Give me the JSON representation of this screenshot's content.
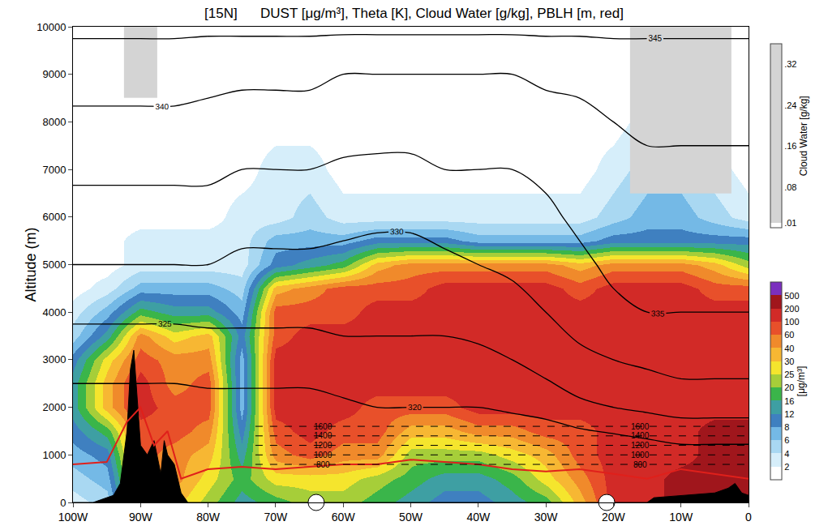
{
  "chart_data": {
    "type": "heatmap",
    "title": "[15N]      DUST [μg/m³], Theta [K], Cloud Water [g/kg], PBLH [m, red]",
    "y_label": "Altitude (m)",
    "xlim": [
      -100,
      0
    ],
    "xticks": [
      {
        "value": -100,
        "label": "100W"
      },
      {
        "value": -90,
        "label": "90W"
      },
      {
        "value": -80,
        "label": "80W"
      },
      {
        "value": -70,
        "label": "70W"
      },
      {
        "value": -60,
        "label": "60W"
      },
      {
        "value": -50,
        "label": "50W"
      },
      {
        "value": -40,
        "label": "40W"
      },
      {
        "value": -30,
        "label": "30W"
      },
      {
        "value": -20,
        "label": "20W"
      },
      {
        "value": -10,
        "label": "10W"
      },
      0
    ],
    "ylim": [
      0,
      10000
    ],
    "yticks": [
      0,
      1000,
      2000,
      3000,
      4000,
      5000,
      6000,
      7000,
      8000,
      9000,
      10000
    ],
    "dust": {
      "x": [
        -100,
        -95,
        -90,
        -85,
        -80,
        -75,
        -70,
        -65,
        -60,
        -55,
        -50,
        -45,
        -40,
        -35,
        -30,
        -25,
        -20,
        -15,
        -10,
        -5,
        0
      ],
      "y": [
        0,
        500,
        1000,
        1500,
        2000,
        2500,
        3000,
        3500,
        4000,
        4500,
        5000,
        5500,
        6000,
        7000,
        8000,
        10000
      ],
      "z": [
        [
          3,
          4,
          30,
          30,
          20,
          12,
          16,
          20,
          20,
          16,
          12,
          10,
          10,
          12,
          16,
          30,
          100,
          150,
          200,
          250,
          300
        ],
        [
          4,
          6,
          40,
          40,
          25,
          16,
          25,
          25,
          25,
          20,
          16,
          12,
          12,
          16,
          25,
          40,
          120,
          150,
          200,
          250,
          300
        ],
        [
          6,
          8,
          60,
          50,
          30,
          12,
          40,
          60,
          50,
          40,
          20,
          20,
          20,
          25,
          30,
          60,
          120,
          150,
          180,
          200,
          250
        ],
        [
          8,
          16,
          80,
          60,
          50,
          8,
          80,
          100,
          80,
          60,
          30,
          30,
          40,
          50,
          60,
          80,
          150,
          150,
          180,
          200,
          220
        ],
        [
          12,
          30,
          100,
          60,
          60,
          6,
          100,
          100,
          100,
          80,
          60,
          80,
          100,
          100,
          100,
          100,
          150,
          150,
          150,
          150,
          150
        ],
        [
          12,
          30,
          100,
          50,
          60,
          6,
          100,
          100,
          100,
          100,
          100,
          120,
          150,
          150,
          150,
          120,
          150,
          150,
          150,
          150,
          150
        ],
        [
          8,
          25,
          80,
          40,
          50,
          6,
          100,
          100,
          100,
          100,
          100,
          150,
          150,
          150,
          150,
          120,
          150,
          150,
          150,
          150,
          150
        ],
        [
          4,
          12,
          40,
          25,
          30,
          8,
          80,
          100,
          100,
          100,
          100,
          150,
          150,
          150,
          150,
          120,
          150,
          150,
          150,
          150,
          120
        ],
        [
          2,
          6,
          16,
          12,
          12,
          6,
          60,
          80,
          80,
          100,
          100,
          120,
          150,
          150,
          150,
          100,
          150,
          150,
          150,
          120,
          100
        ],
        [
          1,
          3,
          6,
          6,
          6,
          4,
          30,
          40,
          60,
          80,
          80,
          100,
          100,
          100,
          100,
          80,
          100,
          100,
          100,
          80,
          60
        ],
        [
          0,
          1,
          3,
          3,
          3,
          3,
          10,
          12,
          16,
          30,
          40,
          40,
          40,
          40,
          40,
          30,
          40,
          40,
          40,
          30,
          20
        ],
        [
          0,
          0,
          2,
          2,
          2,
          2,
          6,
          6,
          6,
          8,
          8,
          8,
          6,
          6,
          6,
          6,
          8,
          8,
          8,
          8,
          8
        ],
        [
          0,
          0,
          1,
          1,
          1,
          2,
          3,
          4,
          3,
          2,
          2,
          2,
          2,
          2,
          2,
          3,
          4,
          6,
          6,
          4,
          3
        ],
        [
          0,
          0,
          0,
          0,
          0,
          0,
          2,
          2,
          0,
          0,
          0,
          0,
          0,
          0,
          0,
          0,
          2,
          4,
          4,
          2,
          0
        ],
        [
          0,
          0,
          0,
          0,
          0,
          0,
          0,
          0,
          0,
          0,
          0,
          0,
          0,
          0,
          0,
          0,
          0,
          2,
          2,
          0,
          0
        ],
        [
          0,
          0,
          0,
          0,
          0,
          0,
          0,
          0,
          0,
          0,
          0,
          0,
          0,
          0,
          0,
          0,
          0,
          0,
          0,
          0,
          0
        ]
      ],
      "colorbar_title": "[μg/m³]",
      "colorbar_ticks": [
        2,
        4,
        6,
        8,
        12,
        16,
        20,
        25,
        30,
        40,
        60,
        100,
        200,
        500
      ],
      "colors": [
        "#ffffff",
        "#d6eefa",
        "#a9d8f2",
        "#74b9e6",
        "#3f80c0",
        "#3e9fa3",
        "#3ab54a",
        "#a6ce39",
        "#f5e52d",
        "#f7b733",
        "#f08a2b",
        "#e8502a",
        "#d22a27",
        "#a0161c",
        "#7b2fbf"
      ]
    },
    "cloud_water": {
      "x": [
        -95,
        -90,
        -85,
        -20,
        -15,
        -10,
        -5,
        0
      ],
      "y": [
        6000,
        7000,
        8000,
        9000,
        10000
      ],
      "z": [
        [
          null,
          null,
          null,
          null,
          null,
          null,
          null,
          null
        ],
        [
          null,
          null,
          null,
          null,
          0.05,
          0.05,
          0.05,
          null
        ],
        [
          null,
          null,
          null,
          null,
          0.05,
          0.05,
          0.05,
          null
        ],
        [
          null,
          0.05,
          null,
          null,
          0.05,
          0.05,
          0.05,
          null
        ],
        [
          null,
          0.05,
          null,
          null,
          0.05,
          0.05,
          0.05,
          null
        ]
      ],
      "colorbar_title": "Cloud Water [g/kg]",
      "colorbar_range": [
        0,
        0.36
      ],
      "colorbar_ticks": [
        {
          "value": 0.01,
          "label": ".01"
        },
        {
          "value": 0.08,
          "label": ".08"
        },
        {
          "value": 0.16,
          "label": ".16"
        },
        {
          "value": 0.24,
          "label": ".24"
        },
        {
          "value": 0.32,
          "label": ".32"
        }
      ],
      "color": "#d4d4d4"
    },
    "theta": {
      "x": [
        -100,
        -95,
        -90,
        -85,
        -80,
        -75,
        -70,
        -65,
        -60,
        -55,
        -50,
        -45,
        -40,
        -35,
        -30,
        -25,
        -20,
        -15,
        -10,
        -5,
        0
      ],
      "y": [
        0,
        1000,
        2000,
        3000,
        4000,
        5000,
        6000,
        7000,
        8000,
        9000,
        10000
      ],
      "z": [
        [
          300,
          300,
          300,
          300,
          300,
          300,
          300,
          300,
          300,
          300,
          300,
          300,
          300,
          300,
          300,
          300,
          300,
          300,
          300,
          300,
          300
        ],
        [
          310,
          310,
          310,
          310,
          310,
          311,
          311,
          311,
          311,
          312,
          312,
          312,
          312,
          313,
          314,
          315,
          316,
          317,
          318,
          318,
          318
        ],
        [
          318,
          318,
          318,
          318,
          318,
          318,
          318,
          318,
          319,
          320,
          320,
          320,
          320,
          321,
          322,
          324,
          325,
          326,
          327,
          327,
          327
        ],
        [
          322,
          322,
          322,
          322,
          323,
          323,
          323,
          323,
          324,
          324,
          324,
          324,
          324,
          325,
          327,
          329,
          330,
          331,
          332,
          332,
          332
        ],
        [
          326,
          326,
          326,
          326,
          326,
          326,
          326,
          326,
          326,
          326,
          326,
          326,
          327,
          328,
          330,
          332,
          334,
          335,
          335,
          335,
          335
        ],
        [
          330,
          330,
          330,
          330,
          330,
          329,
          329,
          329,
          329,
          328,
          328,
          329,
          330,
          331,
          332,
          334,
          336,
          337,
          337,
          337,
          337
        ],
        [
          333,
          333,
          333,
          333,
          333,
          332,
          332,
          332,
          331,
          331,
          331,
          332,
          333,
          333,
          334,
          336,
          337,
          338,
          338,
          338,
          338
        ],
        [
          336,
          336,
          336,
          336,
          336,
          335,
          335,
          335,
          334,
          334,
          334,
          335,
          335,
          335,
          336,
          337,
          338,
          339,
          339,
          339,
          339
        ],
        [
          339,
          339,
          339,
          339,
          339,
          338,
          338,
          338,
          338,
          337,
          337,
          338,
          338,
          338,
          338,
          339,
          340,
          341,
          341,
          341,
          341
        ],
        [
          342,
          342,
          342,
          342,
          341,
          341,
          341,
          341,
          340,
          340,
          340,
          340,
          340,
          340,
          341,
          341,
          342,
          342,
          342,
          342,
          342
        ],
        [
          346,
          346,
          346,
          346,
          346,
          346,
          346,
          346,
          346,
          346,
          346,
          346,
          346,
          346,
          346,
          346,
          346,
          346,
          346,
          346,
          346
        ]
      ],
      "contour_levels": [
        320,
        325,
        330,
        335,
        340,
        345
      ],
      "color": "#000000"
    },
    "pblh": {
      "x": [
        -100,
        -95,
        -92,
        -90,
        -88,
        -86,
        -84,
        -80,
        -75,
        -70,
        -65,
        -60,
        -55,
        -50,
        -45,
        -40,
        -35,
        -30,
        -25,
        -20,
        -15,
        -10,
        -5,
        0
      ],
      "values": [
        800,
        850,
        1700,
        2000,
        1200,
        1500,
        500,
        700,
        750,
        700,
        750,
        800,
        800,
        900,
        850,
        800,
        700,
        650,
        700,
        600,
        500,
        700,
        600,
        500
      ],
      "color": "#e0201b"
    },
    "terrain": {
      "x": [
        -100,
        -97,
        -96,
        -94,
        -93,
        -92,
        -91.5,
        -91,
        -90,
        -89,
        -88,
        -87,
        -86.5,
        -86,
        -85,
        -84,
        -83,
        -82,
        -20,
        -15,
        -14,
        -10,
        -5,
        -3,
        -2,
        -1,
        0
      ],
      "values": [
        0,
        0,
        50,
        150,
        400,
        1500,
        2800,
        3200,
        1200,
        1000,
        1300,
        600,
        1300,
        1000,
        800,
        200,
        0,
        0,
        0,
        0,
        100,
        150,
        200,
        300,
        400,
        200,
        150
      ],
      "color": "#000000"
    },
    "reference_lines": {
      "values": [
        800,
        1000,
        1200,
        1400,
        1600
      ],
      "x_range": [
        -73,
        0
      ],
      "label_x": [
        -63,
        -16
      ],
      "color": "#000000",
      "line_style": "dash"
    },
    "markers": {
      "x": [
        -64,
        -21
      ],
      "color": "#ffffff",
      "marker": "circle"
    }
  }
}
